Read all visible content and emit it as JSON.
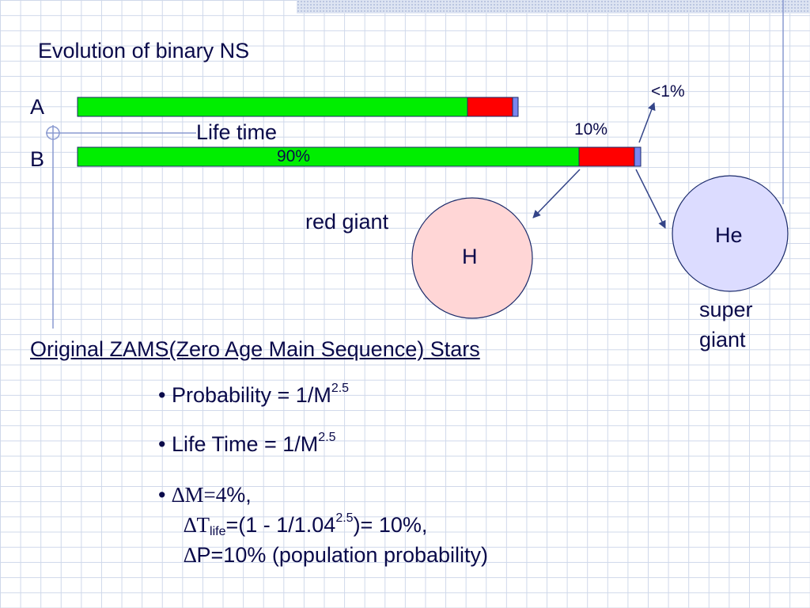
{
  "title": "Evolution of binary NS",
  "diagram": {
    "label_a": "A",
    "label_b": "B",
    "life_time": "Life time",
    "pct_90": "90%",
    "pct_10": "10%",
    "pct_lt1": "<1%",
    "red_giant": "red giant",
    "h": "H",
    "he": "He",
    "super_line1": "super",
    "super_line2": "giant",
    "colors": {
      "main_sequence": "#00ee00",
      "red_giant_phase": "#ff0000",
      "super_giant_phase": "#7a86ee",
      "h_circle": "#ffd6d6",
      "he_circle": "#dcdcff"
    }
  },
  "section": {
    "heading": "Original ZAMS(Zero Age Main Sequence) Stars"
  },
  "bullets": {
    "b1_text": "Probability = 1/M",
    "b1_exp": "2.5",
    "b2_text": "Life Time = 1/M",
    "b2_exp": "2.5",
    "b3_delta": "∆M=4",
    "b3_rest": "%,",
    "b3_l2_delta": "∆T",
    "b3_l2_sub": "life",
    "b3_l2_mid": "=(1 - 1/1.04",
    "b3_l2_exp": "2.5",
    "b3_l2_end": ")= 10%,",
    "b3_l3_delta": "∆",
    "b3_l3_text": "P=10% (population probability)"
  }
}
